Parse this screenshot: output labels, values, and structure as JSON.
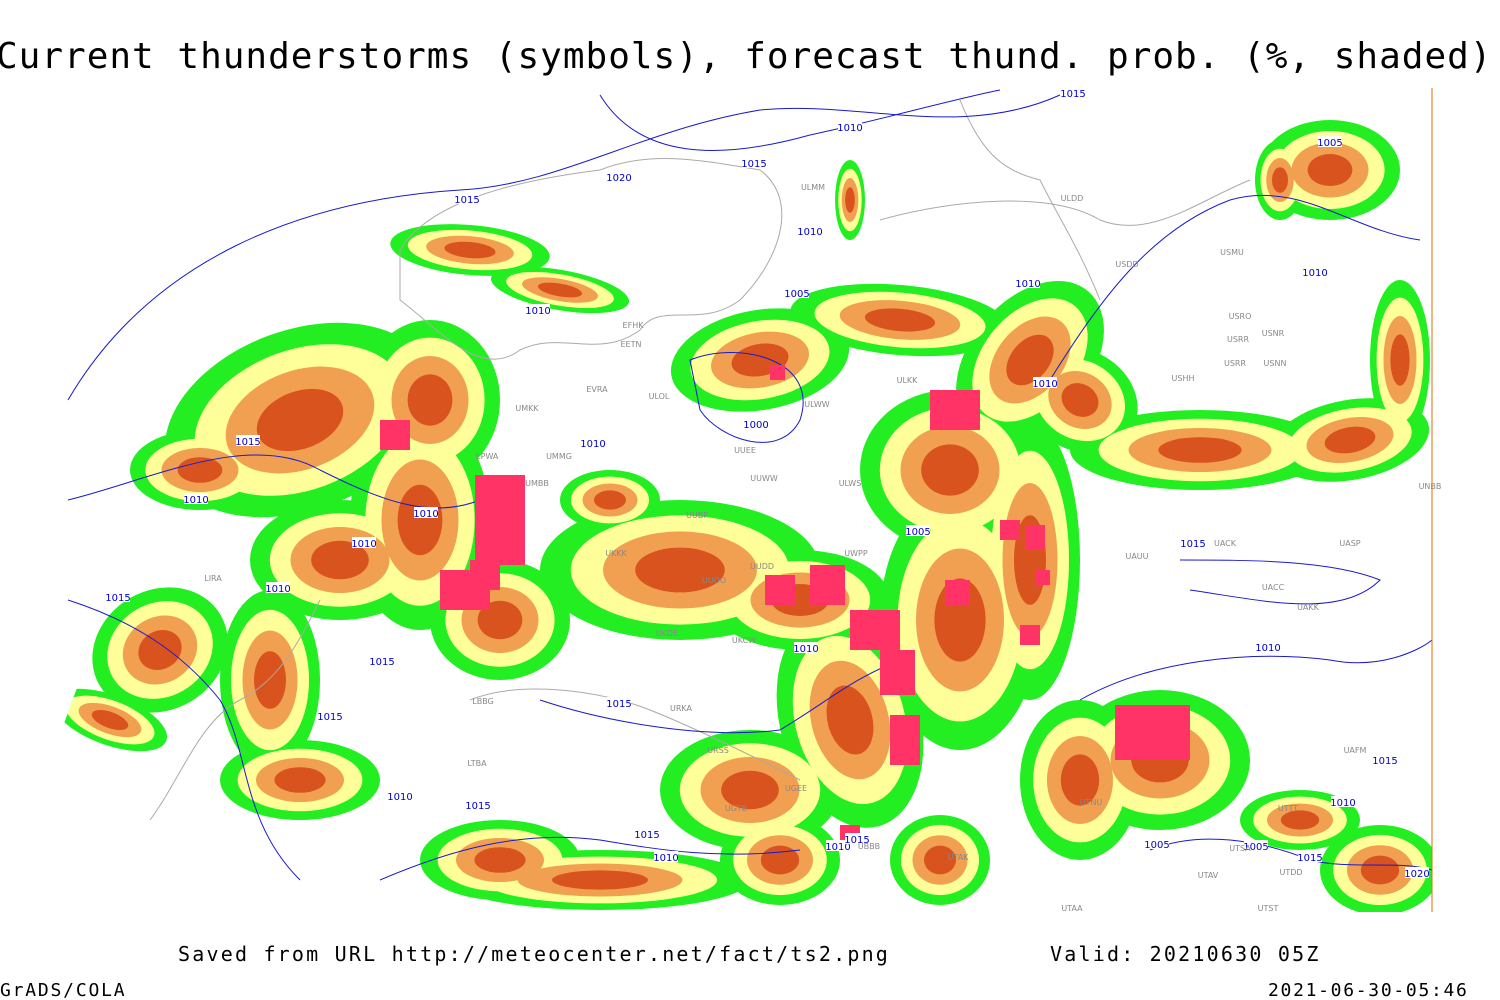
{
  "title": "Current thunderstorms (symbols), forecast thund. prob. (%, shaded)",
  "isobar_labels": [
    1015,
    1010,
    1015,
    1020,
    1015,
    1010,
    1010,
    1005,
    1010,
    1010,
    1005,
    1010,
    1000,
    1010,
    1015,
    1010,
    1010,
    1010,
    1005,
    1015,
    1010,
    1015,
    1010,
    1015,
    1015,
    1015,
    1010,
    1015,
    1010,
    1010,
    1015,
    1015,
    1010,
    1010,
    1015,
    1005,
    1005,
    1015,
    1020
  ],
  "station_labels": [
    "ULMM",
    "ULDD",
    "USDD",
    "USMU",
    "EFHK",
    "EETN",
    "USRO",
    "USRR",
    "USNR",
    "USRR",
    "USNN",
    "USHH",
    "ULKK",
    "EVRA",
    "ULOL",
    "ULWW",
    "UMKK",
    "EPWA",
    "UMMG",
    "UMBB",
    "UUEE",
    "UUBP",
    "UUWW",
    "ULWS",
    "UUDD",
    "UWPP",
    "UKKK",
    "UUOO",
    "UKDE",
    "UKCW",
    "UACK",
    "UAUU",
    "UASP",
    "UACC",
    "UAKK",
    "UNBB",
    "LIRA",
    "URKA",
    "URSS",
    "UGTB",
    "UTAK",
    "UTAA",
    "UTTT",
    "UTSA",
    "UTAV",
    "UTST",
    "UAFM",
    "UTDD",
    "LBBG",
    "LTBA",
    "UGEE",
    "UBBB",
    "UTNU"
  ],
  "footer": {
    "source": "Saved from URL http://meteocenter.net/fact/ts2.png",
    "valid": "Valid: 20210630 05Z",
    "software": "GrADS/COLA",
    "timestamp": "2021-06-30-05:46"
  }
}
